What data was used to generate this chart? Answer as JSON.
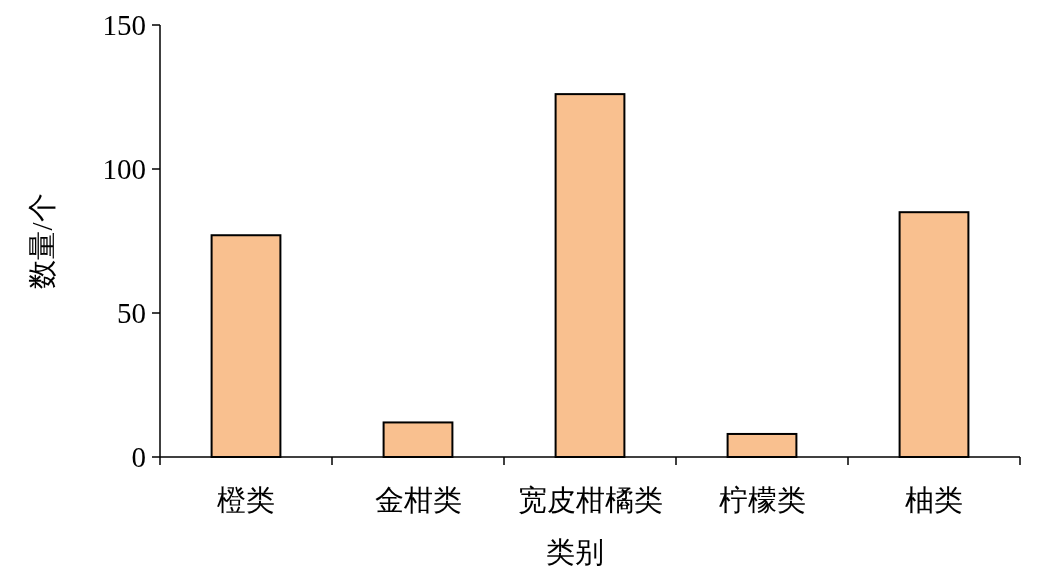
{
  "chart_data": {
    "type": "bar",
    "xlabel": "类别",
    "ylabel": "数量/个",
    "categories": [
      "橙类",
      "金柑类",
      "宽皮柑橘类",
      "柠檬类",
      "柚类"
    ],
    "values": [
      77,
      12,
      126,
      8,
      85
    ],
    "color": "#f9c08f",
    "ylim": [
      0,
      150
    ],
    "yticks": [
      0,
      50,
      100,
      150
    ],
    "grid": false
  }
}
